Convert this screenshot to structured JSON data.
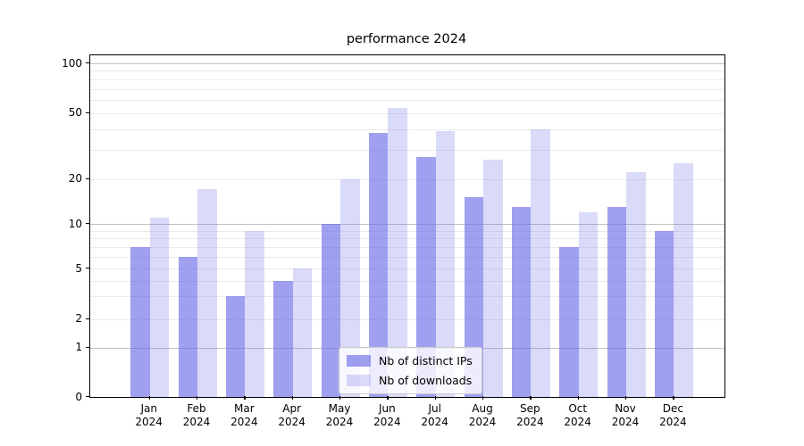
{
  "chart_data": {
    "type": "bar",
    "title": "performance 2024",
    "categories": [
      "Jan",
      "Feb",
      "Mar",
      "Apr",
      "May",
      "Jun",
      "Jul",
      "Aug",
      "Sep",
      "Oct",
      "Nov",
      "Dec"
    ],
    "year_line": "2024",
    "series": [
      {
        "name": "Nb of distinct IPs",
        "color": "rgba(102,102,230,0.62)",
        "approx_hex": "#a3a3f0",
        "values": [
          7,
          6,
          3,
          4,
          10,
          38,
          27,
          15,
          13,
          7,
          13,
          9
        ]
      },
      {
        "name": "Nb of downloads",
        "color": "rgba(102,102,230,0.24)",
        "approx_hex": "#dfdffa",
        "values": [
          11,
          17,
          9,
          5,
          20,
          54,
          39,
          26,
          40,
          12,
          22,
          25
        ]
      }
    ],
    "xlabel": "",
    "ylabel": "",
    "yscale": "log-like (symlog: linear 0-1, logarithmic above)",
    "ylim": [
      0,
      112
    ],
    "yticks": [
      0,
      1,
      2,
      5,
      10,
      20,
      50,
      100
    ],
    "gridlines_major": [
      1,
      10,
      100
    ],
    "gridlines_light": [
      2,
      3,
      4,
      5,
      6,
      7,
      8,
      9,
      20,
      30,
      40,
      50,
      60,
      70,
      80,
      90
    ],
    "legend_position": "lower center inside plot",
    "grid": "on"
  }
}
